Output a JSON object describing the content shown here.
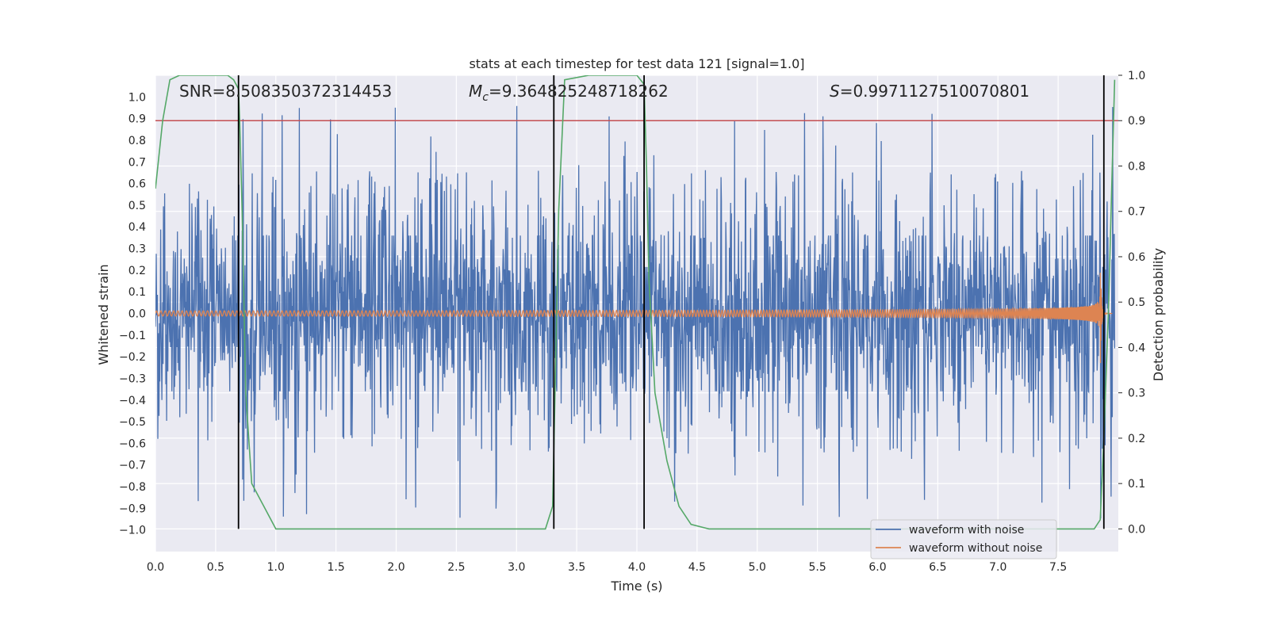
{
  "chart_data": {
    "type": "line",
    "title": "stats at each timestep for test data 121 [signal=1.0]",
    "xlabel": "Time (s)",
    "ylabel": "Whitened strain",
    "ylabel_right": "Detection probability",
    "xlim": [
      0.0,
      8.0
    ],
    "ylim": [
      -1.1,
      1.1
    ],
    "ylim_right": [
      -0.05,
      1.0
    ],
    "xticks": [
      "0.0",
      "0.5",
      "1.0",
      "1.5",
      "2.0",
      "2.5",
      "3.0",
      "3.5",
      "4.0",
      "4.5",
      "5.0",
      "5.5",
      "6.0",
      "6.5",
      "7.0",
      "7.5"
    ],
    "yticks": [
      "1.0",
      "0.9",
      "0.8",
      "0.7",
      "0.6",
      "0.5",
      "0.4",
      "0.3",
      "0.2",
      "0.1",
      "0.0",
      "−0.1",
      "−0.2",
      "−0.3",
      "−0.4",
      "−0.5",
      "−0.6",
      "−0.7",
      "−0.8",
      "−0.9",
      "−1.0"
    ],
    "yticks_right": [
      "1.0",
      "0.9",
      "0.8",
      "0.7",
      "0.6",
      "0.5",
      "0.4",
      "0.3",
      "0.2",
      "0.1",
      "0.0"
    ],
    "annotations": {
      "snr": "SNR=8.508350372314453",
      "mc_symbol": "M",
      "mc_sub": "c",
      "mc_value": "=9.364825248718262",
      "s_symbol": "S",
      "s_value": "=0.9971127510070801"
    },
    "legend": {
      "position": "lower-right",
      "entries": [
        "waveform with noise",
        "waveform without noise"
      ]
    },
    "threshold": {
      "value": 0.9,
      "axis": "right",
      "color": "#c44e52"
    },
    "vertical_lines": [
      0.69,
      3.31,
      4.06,
      7.88
    ],
    "series": [
      {
        "name": "waveform with noise",
        "color": "#4c72b0",
        "kind": "noise",
        "envelope": 0.36,
        "peak": 0.96
      },
      {
        "name": "waveform without noise",
        "color": "#dd8452",
        "kind": "chirp",
        "t_merge": 7.85,
        "amp_start": 0.012,
        "amp_peak": 0.29
      },
      {
        "name": "detection probability",
        "color": "#55a868",
        "axis": "right",
        "x": [
          0.0,
          0.06,
          0.12,
          0.2,
          0.3,
          0.45,
          0.6,
          0.65,
          0.69,
          0.7,
          0.72,
          0.75,
          0.8,
          0.9,
          1.0,
          2.0,
          3.0,
          3.24,
          3.3,
          3.32,
          3.35,
          3.4,
          3.6,
          4.0,
          4.06,
          4.08,
          4.1,
          4.15,
          4.25,
          4.35,
          4.45,
          4.6,
          5.0,
          6.0,
          7.0,
          7.5,
          7.8,
          7.85,
          7.88,
          7.92,
          7.95,
          7.97
        ],
        "y": [
          0.75,
          0.9,
          0.99,
          1.0,
          1.0,
          1.0,
          1.0,
          0.99,
          0.97,
          0.9,
          0.7,
          0.3,
          0.1,
          0.05,
          0.0,
          0.0,
          0.0,
          0.0,
          0.05,
          0.3,
          0.7,
          0.99,
          1.0,
          1.0,
          0.98,
          0.8,
          0.55,
          0.3,
          0.15,
          0.05,
          0.01,
          0.0,
          0.0,
          0.0,
          0.0,
          0.0,
          0.0,
          0.02,
          0.2,
          0.5,
          0.8,
          0.99
        ]
      }
    ]
  }
}
